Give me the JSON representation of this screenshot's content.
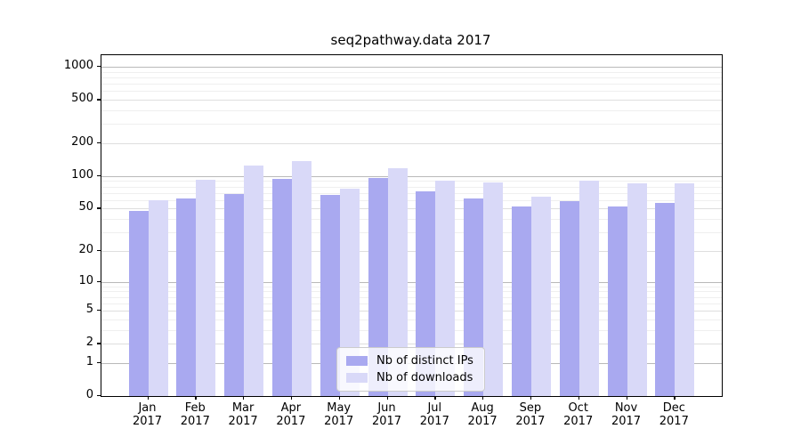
{
  "chart_data": {
    "type": "bar",
    "title": "seq2pathway.data 2017",
    "scale": "log10(value+1)",
    "categories": [
      "Jan 2017",
      "Feb 2017",
      "Mar 2017",
      "Apr 2017",
      "May 2017",
      "Jun 2017",
      "Jul 2017",
      "Aug 2017",
      "Sep 2017",
      "Oct 2017",
      "Nov 2017",
      "Dec 2017"
    ],
    "series": [
      {
        "name": "Nb of distinct IPs",
        "color": "#a9a9f0",
        "values": [
          48,
          62,
          68,
          95,
          67,
          96,
          73,
          62,
          52,
          59,
          52,
          57
        ]
      },
      {
        "name": "Nb of downloads",
        "color": "#d9d9f8",
        "values": [
          60,
          92,
          126,
          138,
          76,
          118,
          91,
          88,
          64,
          90,
          86,
          86
        ]
      }
    ],
    "ylim": [
      0,
      1000
    ],
    "grid": true,
    "legend_position": "inside-bottom-center",
    "y_ticks": [
      {
        "value": 0,
        "label": "0"
      },
      {
        "value": 1,
        "label": "1"
      },
      {
        "value": 2,
        "label": "2"
      },
      {
        "value": 5,
        "label": "5"
      },
      {
        "value": 10,
        "label": "10"
      },
      {
        "value": 20,
        "label": "20"
      },
      {
        "value": 50,
        "label": "50"
      },
      {
        "value": 100,
        "label": "100"
      },
      {
        "value": 200,
        "label": "200"
      },
      {
        "value": 500,
        "label": "500"
      },
      {
        "value": 1000,
        "label": "1000"
      }
    ],
    "y_major_gridlines": [
      1,
      10,
      100,
      1000
    ],
    "y_labeled_gridlines": [
      2,
      5,
      20,
      50,
      200,
      500
    ],
    "y_minor_gridlines": [
      3,
      4,
      6,
      7,
      8,
      9,
      30,
      40,
      60,
      70,
      80,
      90,
      300,
      400,
      600,
      700,
      800,
      900
    ],
    "x_tick_labels": [
      [
        "Jan",
        "2017"
      ],
      [
        "Feb",
        "2017"
      ],
      [
        "Mar",
        "2017"
      ],
      [
        "Apr",
        "2017"
      ],
      [
        "May",
        "2017"
      ],
      [
        "Jun",
        "2017"
      ],
      [
        "Jul",
        "2017"
      ],
      [
        "Aug",
        "2017"
      ],
      [
        "Sep",
        "2017"
      ],
      [
        "Oct",
        "2017"
      ],
      [
        "Nov",
        "2017"
      ],
      [
        "Dec",
        "2017"
      ]
    ]
  },
  "colors": {
    "distinct_ips": "#a9a9f0",
    "downloads": "#d9d9f8",
    "grid_major": "#b9b9b9",
    "grid_labeled": "#dedede",
    "grid_minor": "#efefef"
  }
}
